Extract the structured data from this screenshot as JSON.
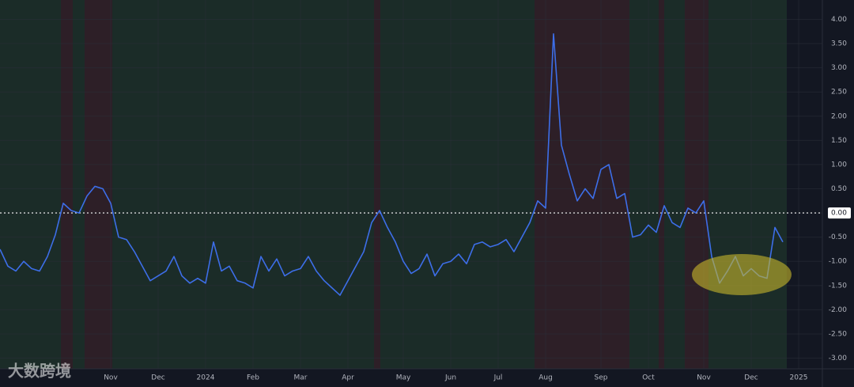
{
  "chart_data": {
    "type": "line",
    "categories": [
      null,
      null,
      null,
      null,
      null,
      null,
      null,
      null,
      null,
      null,
      null,
      null,
      null,
      null,
      "Nov",
      null,
      null,
      null,
      null,
      null,
      "Dec",
      null,
      null,
      null,
      null,
      null,
      "2024",
      null,
      null,
      null,
      null,
      null,
      "Feb",
      null,
      null,
      null,
      null,
      null,
      "Mar",
      null,
      null,
      null,
      null,
      null,
      "Apr",
      null,
      null,
      null,
      null,
      null,
      null,
      "May",
      null,
      null,
      null,
      null,
      null,
      "Jun",
      null,
      null,
      null,
      null,
      null,
      "Jul",
      null,
      null,
      null,
      null,
      null,
      "Aug",
      null,
      null,
      null,
      null,
      null,
      null,
      "Sep",
      null,
      null,
      null,
      null,
      null,
      "Oct",
      null,
      null,
      null,
      null,
      null,
      null,
      "Nov",
      null,
      null,
      null,
      null,
      null,
      "Dec",
      null,
      null,
      null,
      null,
      null,
      "2025",
      null,
      null
    ],
    "series": [
      {
        "color": "#3d6ee8",
        "values": [
          -0.75,
          -1.1,
          -1.2,
          -1.0,
          -1.15,
          -1.2,
          -0.9,
          -0.45,
          0.2,
          0.05,
          0.0,
          0.35,
          0.55,
          0.5,
          0.2,
          -0.5,
          -0.55,
          -0.8,
          -1.1,
          -1.4,
          -1.3,
          -1.2,
          -0.9,
          -1.3,
          -1.45,
          -1.35,
          -1.45,
          -0.6,
          -1.2,
          -1.1,
          -1.4,
          -1.45,
          -1.55,
          -0.9,
          -1.2,
          -0.95,
          -1.3,
          -1.2,
          -1.15,
          -0.9,
          -1.2,
          -1.4,
          -1.55,
          -1.7,
          -1.4,
          -1.1,
          -0.8,
          -0.2,
          0.05,
          -0.3,
          -0.6,
          -1.0,
          -1.25,
          -1.15,
          -0.85,
          -1.3,
          -1.05,
          -1.0,
          -0.85,
          -1.05,
          -0.65,
          -0.6,
          -0.7,
          -0.65,
          -0.55,
          -0.8,
          -0.5,
          -0.2,
          0.25,
          0.1,
          3.7,
          1.4,
          0.8,
          0.25,
          0.5,
          0.3,
          0.9,
          1.0,
          0.3,
          0.4,
          -0.5,
          -0.45,
          -0.25,
          -0.4,
          0.15,
          -0.2,
          -0.3,
          0.1,
          0.0,
          0.25,
          -0.9,
          -1.45,
          -1.2,
          -0.9,
          -1.3,
          -1.15,
          -1.3,
          -1.35,
          -0.3,
          -0.6,
          null,
          null,
          null,
          null
        ]
      }
    ],
    "ylim": [
      -3.22,
      4.4
    ],
    "yticks": [
      {
        "value": 4,
        "label": "4.00"
      },
      {
        "value": 3.5,
        "label": "3.50"
      },
      {
        "value": 3,
        "label": "3.00"
      },
      {
        "value": 2.5,
        "label": "2.50"
      },
      {
        "value": 2,
        "label": "2.00"
      },
      {
        "value": 1.5,
        "label": "1.50"
      },
      {
        "value": 1,
        "label": "1.00"
      },
      {
        "value": 0.5,
        "label": "0.50"
      },
      {
        "value": 0,
        "label": "0.00"
      },
      {
        "value": -0.5,
        "label": "-0.50"
      },
      {
        "value": -1,
        "label": "-1.00"
      },
      {
        "value": -1.5,
        "label": "-1.50"
      },
      {
        "value": -2,
        "label": "-2.00"
      },
      {
        "value": -2.5,
        "label": "-2.50"
      },
      {
        "value": -3,
        "label": "-3.00"
      }
    ],
    "grid": true
  },
  "watermark": "大数跨境"
}
